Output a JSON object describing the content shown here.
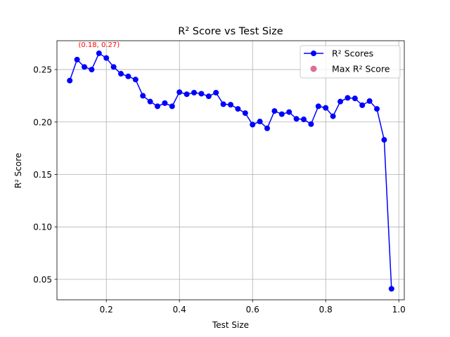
{
  "chart_data": {
    "type": "line",
    "title": "R² Score vs Test Size",
    "xlabel": "Test Size",
    "ylabel": "R² Score",
    "xlim": [
      0.065,
      1.015
    ],
    "ylim": [
      0.0305,
      0.2775
    ],
    "grid": true,
    "legend_position": "top-right",
    "x_ticks": [
      0.2,
      0.4,
      0.6,
      0.8,
      1.0
    ],
    "x_tick_labels": [
      "0.2",
      "0.4",
      "0.6",
      "0.8",
      "1.0"
    ],
    "y_ticks": [
      0.05,
      0.1,
      0.15,
      0.2,
      0.25
    ],
    "y_tick_labels": [
      "0.05",
      "0.10",
      "0.15",
      "0.20",
      "0.25"
    ],
    "series": [
      {
        "name": "R² Scores",
        "color": "#0000ff",
        "marker": "circle",
        "x": [
          0.1,
          0.12,
          0.14,
          0.16,
          0.18,
          0.2,
          0.22,
          0.24,
          0.26,
          0.28,
          0.3,
          0.32,
          0.34,
          0.36,
          0.38,
          0.4,
          0.42,
          0.44,
          0.46,
          0.48,
          0.5,
          0.52,
          0.54,
          0.56,
          0.58,
          0.6,
          0.62,
          0.64,
          0.66,
          0.68,
          0.7,
          0.72,
          0.74,
          0.76,
          0.78,
          0.8,
          0.82,
          0.84,
          0.86,
          0.88,
          0.9,
          0.92,
          0.94,
          0.96,
          0.98
        ],
        "y": [
          0.2395,
          0.2595,
          0.2525,
          0.25,
          0.2655,
          0.261,
          0.2525,
          0.246,
          0.2435,
          0.2405,
          0.225,
          0.2195,
          0.215,
          0.218,
          0.215,
          0.2285,
          0.2265,
          0.228,
          0.227,
          0.2245,
          0.228,
          0.217,
          0.2165,
          0.2125,
          0.2085,
          0.1975,
          0.2005,
          0.194,
          0.2105,
          0.2075,
          0.2095,
          0.203,
          0.2025,
          0.198,
          0.215,
          0.2135,
          0.2055,
          0.2195,
          0.223,
          0.2225,
          0.216,
          0.22,
          0.2125,
          0.183,
          0.041
        ]
      },
      {
        "name": "Max R² Score",
        "color": "#db7093",
        "marker": "circle",
        "x": [],
        "y": []
      }
    ],
    "annotations": [
      {
        "text": "(0.18, 0.27)",
        "x": 0.18,
        "y": 0.2655,
        "color": "#ff0000"
      }
    ]
  }
}
